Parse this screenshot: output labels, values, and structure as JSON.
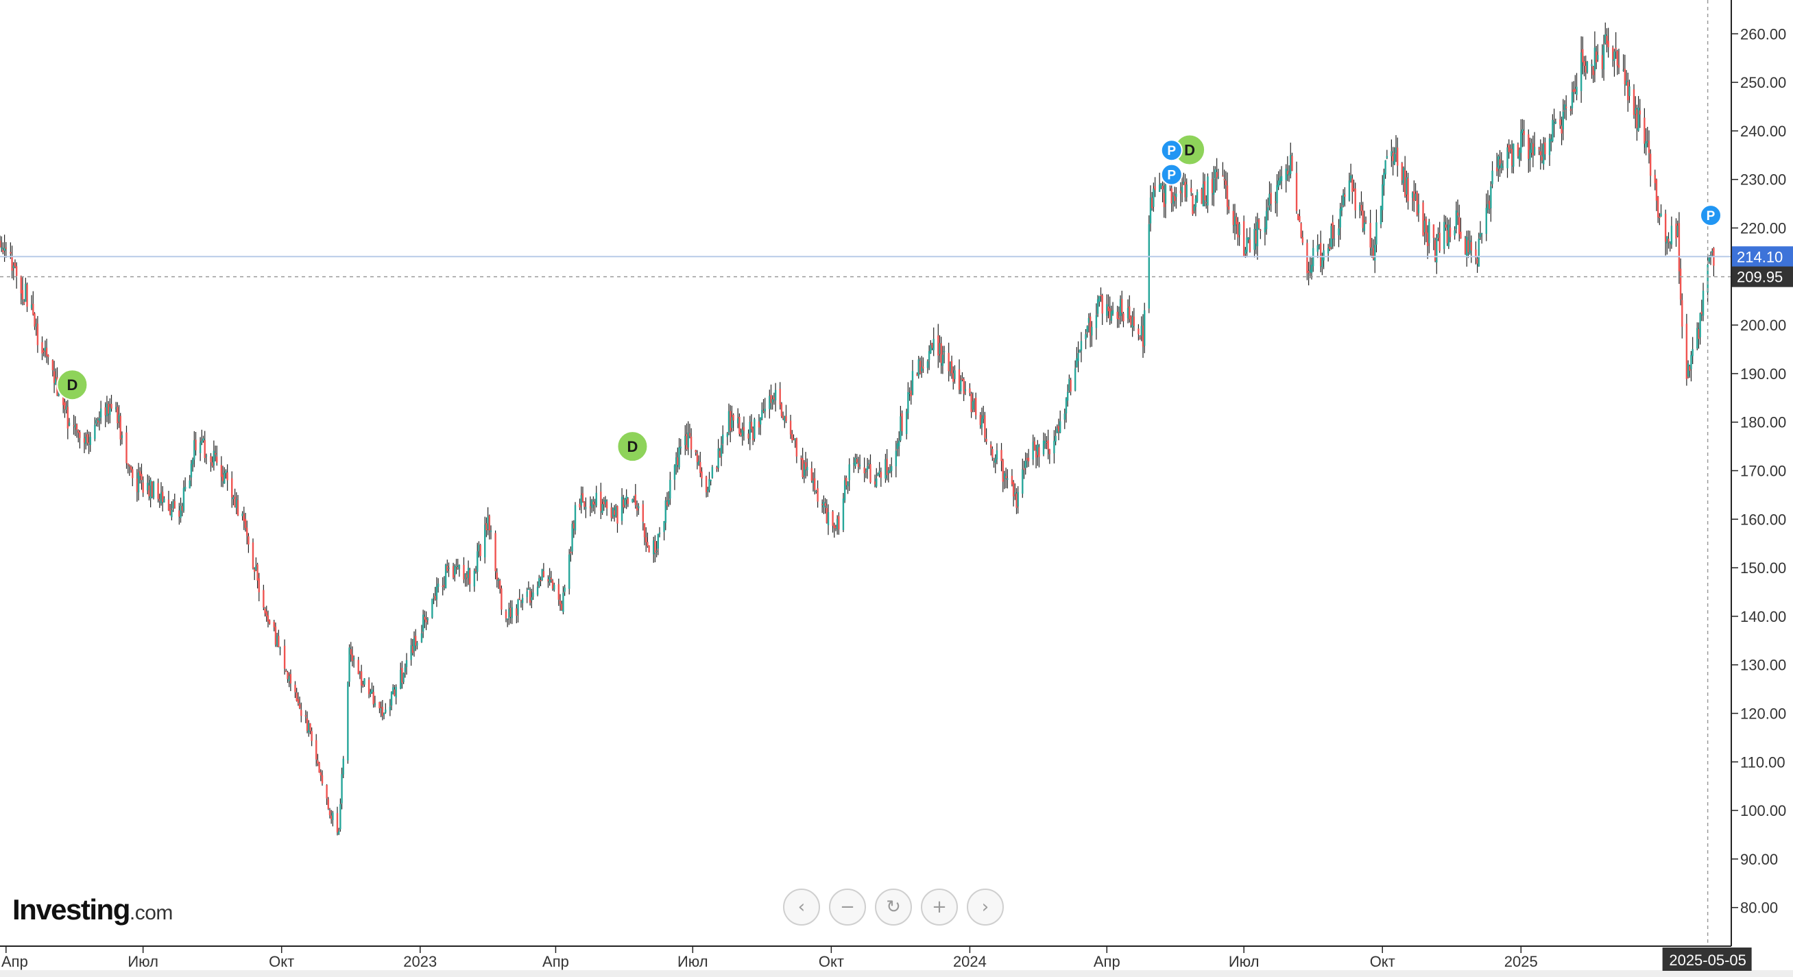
{
  "logo": {
    "main": "Investing",
    "suffix": ".com"
  },
  "nav": [
    {
      "name": "scroll-left-button",
      "icon": "chevron-left-icon",
      "glyph": "‹"
    },
    {
      "name": "zoom-out-button",
      "icon": "minus-icon",
      "glyph": "−"
    },
    {
      "name": "reset-button",
      "icon": "refresh-icon",
      "glyph": "↻"
    },
    {
      "name": "zoom-in-button",
      "icon": "plus-icon",
      "glyph": "+"
    },
    {
      "name": "scroll-right-button",
      "icon": "chevron-right-icon",
      "glyph": "›"
    }
  ],
  "colors": {
    "up": "#26a69a",
    "down": "#ef5350",
    "wick": "#222222",
    "last_price_tag": "#3d73d9",
    "crosshair_tag": "#333333",
    "dividend_marker": "#8ed35a",
    "event_marker": "#2196f3"
  },
  "chart_data": {
    "type": "candlestick",
    "x_axis": {
      "type": "date",
      "range": [
        "2022-03-28",
        "2025-05-12"
      ],
      "ticks": [
        {
          "date": "2022-04-01",
          "label": "Апр"
        },
        {
          "date": "2022-07-01",
          "label": "Июл"
        },
        {
          "date": "2022-10-01",
          "label": "Окт"
        },
        {
          "date": "2023-01-01",
          "label": "2023"
        },
        {
          "date": "2023-04-01",
          "label": "Апр"
        },
        {
          "date": "2023-07-01",
          "label": "Июл"
        },
        {
          "date": "2023-10-01",
          "label": "Окт"
        },
        {
          "date": "2024-01-01",
          "label": "2024"
        },
        {
          "date": "2024-04-01",
          "label": "Апр"
        },
        {
          "date": "2024-07-01",
          "label": "Июл"
        },
        {
          "date": "2024-10-01",
          "label": "Окт"
        },
        {
          "date": "2025-01-01",
          "label": "2025"
        }
      ]
    },
    "y_axis": {
      "position": "right",
      "range": [
        76,
        264
      ],
      "ticks": [
        80,
        90,
        100,
        110,
        120,
        130,
        140,
        150,
        160,
        170,
        180,
        190,
        200,
        210,
        220,
        230,
        240,
        250,
        260
      ],
      "tick_labels": [
        "80.00",
        "90.00",
        "100.00",
        "110.00",
        "120.00",
        "130.00",
        "140.00",
        "150.00",
        "160.00",
        "170.00",
        "180.00",
        "190.00",
        "200.00",
        "210.00",
        "220.00",
        "230.00",
        "240.00",
        "250.00",
        "260.00"
      ]
    },
    "grid": false,
    "last_price": {
      "value": 214.1,
      "label": "214.10"
    },
    "crosshair": {
      "value": 209.95,
      "label": "209.95",
      "date": "2025-05-05",
      "date_label": "2025-05-05"
    },
    "price_path": [
      [
        "2022-03-28",
        218
      ],
      [
        "2022-04-10",
        210
      ],
      [
        "2022-04-25",
        195
      ],
      [
        "2022-05-10",
        182
      ],
      [
        "2022-05-25",
        175
      ],
      [
        "2022-06-10",
        185
      ],
      [
        "2022-06-25",
        168
      ],
      [
        "2022-07-10",
        166
      ],
      [
        "2022-07-25",
        160
      ],
      [
        "2022-08-05",
        176
      ],
      [
        "2022-08-20",
        172
      ],
      [
        "2022-09-05",
        160
      ],
      [
        "2022-09-20",
        142
      ],
      [
        "2022-10-05",
        128
      ],
      [
        "2022-10-20",
        116
      ],
      [
        "2022-11-01",
        100
      ],
      [
        "2022-11-08",
        96
      ],
      [
        "2022-11-15",
        132
      ],
      [
        "2022-11-25",
        126
      ],
      [
        "2022-12-08",
        120
      ],
      [
        "2022-12-20",
        128
      ],
      [
        "2023-01-05",
        140
      ],
      [
        "2023-01-20",
        150
      ],
      [
        "2023-02-05",
        148
      ],
      [
        "2023-02-15",
        160
      ],
      [
        "2023-02-25",
        141
      ],
      [
        "2023-03-10",
        142
      ],
      [
        "2023-03-25",
        150
      ],
      [
        "2023-04-05",
        143
      ],
      [
        "2023-04-15",
        163
      ],
      [
        "2023-04-28",
        164
      ],
      [
        "2023-05-10",
        160
      ],
      [
        "2023-05-22",
        166
      ],
      [
        "2023-06-01",
        155
      ],
      [
        "2023-06-08",
        155
      ],
      [
        "2023-06-20",
        173
      ],
      [
        "2023-07-01",
        177
      ],
      [
        "2023-07-10",
        166
      ],
      [
        "2023-07-25",
        180
      ],
      [
        "2023-08-10",
        178
      ],
      [
        "2023-08-25",
        186
      ],
      [
        "2023-09-10",
        172
      ],
      [
        "2023-09-25",
        162
      ],
      [
        "2023-10-05",
        158
      ],
      [
        "2023-10-15",
        174
      ],
      [
        "2023-10-30",
        168
      ],
      [
        "2023-11-10",
        172
      ],
      [
        "2023-11-25",
        190
      ],
      [
        "2023-12-10",
        196
      ],
      [
        "2023-12-20",
        190
      ],
      [
        "2024-01-05",
        183
      ],
      [
        "2024-01-20",
        172
      ],
      [
        "2024-02-01",
        163
      ],
      [
        "2024-02-10",
        175
      ],
      [
        "2024-02-25",
        174
      ],
      [
        "2024-03-10",
        190
      ],
      [
        "2024-03-25",
        204
      ],
      [
        "2024-04-10",
        203
      ],
      [
        "2024-04-25",
        198
      ],
      [
        "2024-04-30",
        225
      ],
      [
        "2024-05-15",
        228
      ],
      [
        "2024-06-01",
        225
      ],
      [
        "2024-06-15",
        232
      ],
      [
        "2024-07-01",
        216
      ],
      [
        "2024-07-15",
        222
      ],
      [
        "2024-08-01",
        234
      ],
      [
        "2024-08-10",
        212
      ],
      [
        "2024-08-25",
        216
      ],
      [
        "2024-09-10",
        228
      ],
      [
        "2024-09-25",
        216
      ],
      [
        "2024-10-05",
        238
      ],
      [
        "2024-10-20",
        226
      ],
      [
        "2024-11-05",
        216
      ],
      [
        "2024-11-20",
        222
      ],
      [
        "2024-12-01",
        212
      ],
      [
        "2024-12-15",
        232
      ],
      [
        "2025-01-01",
        238
      ],
      [
        "2025-01-15",
        236
      ],
      [
        "2025-02-01",
        244
      ],
      [
        "2025-02-10",
        256
      ],
      [
        "2025-02-20",
        254
      ],
      [
        "2025-03-01",
        258
      ],
      [
        "2025-03-10",
        250
      ],
      [
        "2025-03-25",
        238
      ],
      [
        "2025-04-01",
        226
      ],
      [
        "2025-04-08",
        218
      ],
      [
        "2025-04-15",
        220
      ],
      [
        "2025-04-20",
        186
      ],
      [
        "2025-04-24",
        194
      ],
      [
        "2025-04-30",
        200
      ],
      [
        "2025-05-05",
        212
      ],
      [
        "2025-05-09",
        215
      ]
    ],
    "markers": [
      {
        "type": "dividend",
        "label": "D",
        "date": "2022-05-15",
        "value": 187.7
      },
      {
        "type": "dividend",
        "label": "D",
        "date": "2023-05-22",
        "value": 175.0
      },
      {
        "type": "dividend",
        "label": "D",
        "date": "2024-05-26",
        "value": 236.1
      },
      {
        "type": "event",
        "label": "P",
        "date": "2024-05-14",
        "value": 236.0
      },
      {
        "type": "event",
        "label": "P",
        "date": "2024-05-14",
        "value": 231.0
      },
      {
        "type": "event",
        "label": "P",
        "date": "2025-05-07",
        "value": 222.6
      }
    ]
  }
}
